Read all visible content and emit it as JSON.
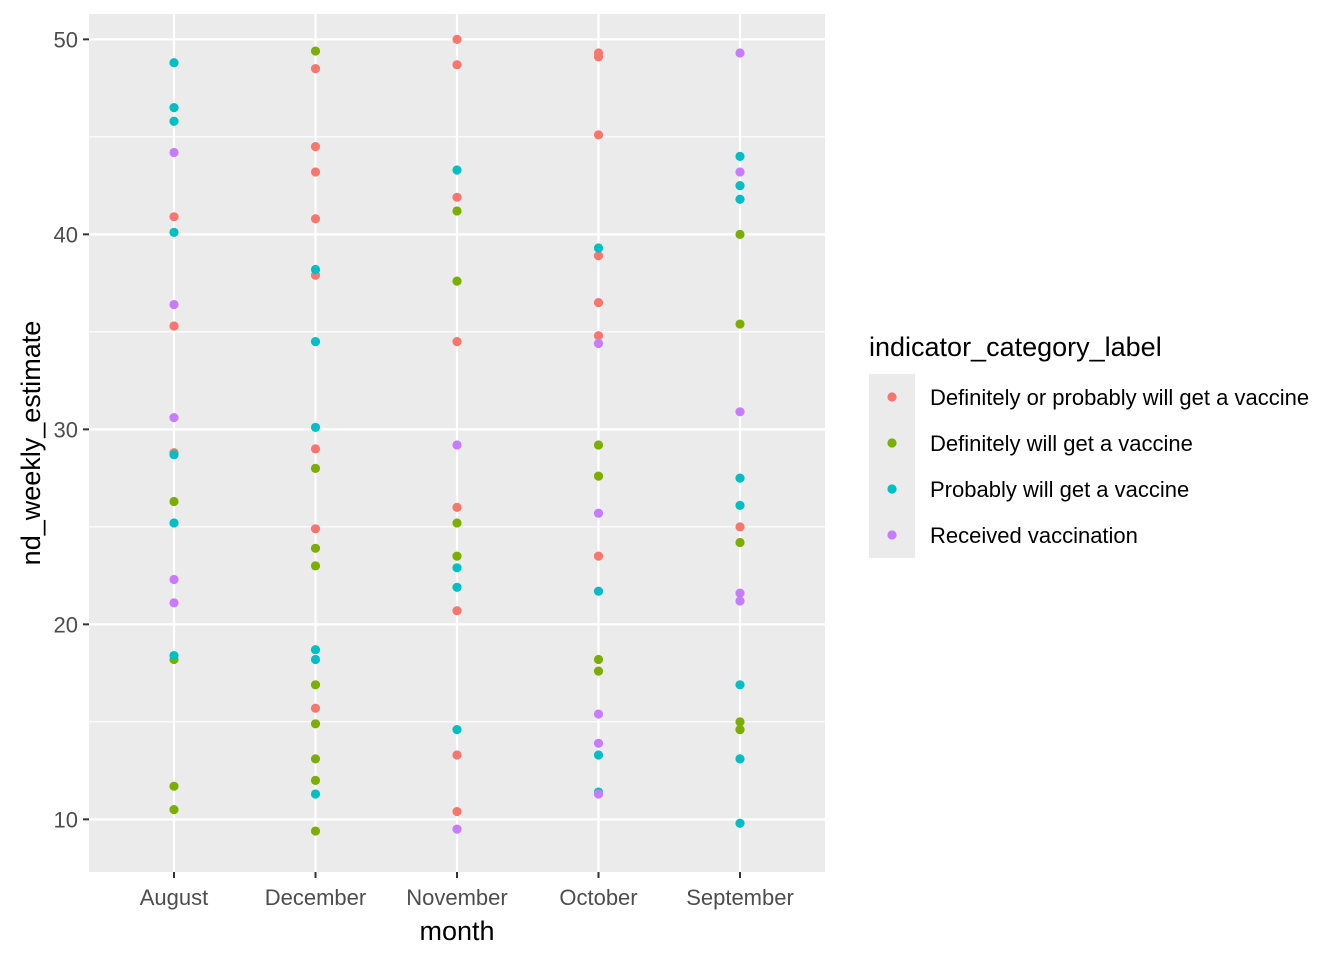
{
  "chart_data": {
    "type": "scatter",
    "xlabel": "month",
    "ylabel": "nd_weekly_estimate",
    "categories": [
      "August",
      "December",
      "November",
      "October",
      "September"
    ],
    "ylim": [
      7.3,
      51.3
    ],
    "yticks": [
      10,
      20,
      30,
      40,
      50
    ],
    "grid": true,
    "legend": {
      "title": "indicator_category_label",
      "position": "right"
    },
    "series": [
      {
        "name": "Definitely or probably will get a vaccine",
        "color": "#F8766D",
        "points": [
          {
            "x": "August",
            "y": 40.9
          },
          {
            "x": "August",
            "y": 35.3
          },
          {
            "x": "August",
            "y": 28.8
          },
          {
            "x": "December",
            "y": 48.5
          },
          {
            "x": "December",
            "y": 44.5
          },
          {
            "x": "December",
            "y": 43.2
          },
          {
            "x": "December",
            "y": 40.8
          },
          {
            "x": "December",
            "y": 37.9
          },
          {
            "x": "December",
            "y": 29.0
          },
          {
            "x": "December",
            "y": 24.9
          },
          {
            "x": "December",
            "y": 15.7
          },
          {
            "x": "November",
            "y": 50.0
          },
          {
            "x": "November",
            "y": 48.7
          },
          {
            "x": "November",
            "y": 41.9
          },
          {
            "x": "November",
            "y": 34.5
          },
          {
            "x": "November",
            "y": 26.0
          },
          {
            "x": "November",
            "y": 20.7
          },
          {
            "x": "November",
            "y": 13.3
          },
          {
            "x": "November",
            "y": 10.4
          },
          {
            "x": "October",
            "y": 49.3
          },
          {
            "x": "October",
            "y": 49.1
          },
          {
            "x": "October",
            "y": 45.1
          },
          {
            "x": "October",
            "y": 38.9
          },
          {
            "x": "October",
            "y": 36.5
          },
          {
            "x": "October",
            "y": 34.8
          },
          {
            "x": "October",
            "y": 23.5
          },
          {
            "x": "September",
            "y": 25.0
          }
        ]
      },
      {
        "name": "Definitely will get a vaccine",
        "color": "#7CAE00",
        "points": [
          {
            "x": "August",
            "y": 26.3
          },
          {
            "x": "August",
            "y": 18.2
          },
          {
            "x": "August",
            "y": 11.7
          },
          {
            "x": "August",
            "y": 10.5
          },
          {
            "x": "December",
            "y": 49.4
          },
          {
            "x": "December",
            "y": 28.0
          },
          {
            "x": "December",
            "y": 23.9
          },
          {
            "x": "December",
            "y": 23.0
          },
          {
            "x": "December",
            "y": 16.9
          },
          {
            "x": "December",
            "y": 14.9
          },
          {
            "x": "December",
            "y": 13.1
          },
          {
            "x": "December",
            "y": 12.0
          },
          {
            "x": "December",
            "y": 9.4
          },
          {
            "x": "November",
            "y": 41.2
          },
          {
            "x": "November",
            "y": 37.6
          },
          {
            "x": "November",
            "y": 25.2
          },
          {
            "x": "November",
            "y": 23.5
          },
          {
            "x": "October",
            "y": 29.2
          },
          {
            "x": "October",
            "y": 27.6
          },
          {
            "x": "October",
            "y": 18.2
          },
          {
            "x": "October",
            "y": 17.6
          },
          {
            "x": "September",
            "y": 40.0
          },
          {
            "x": "September",
            "y": 35.4
          },
          {
            "x": "September",
            "y": 24.2
          },
          {
            "x": "September",
            "y": 15.0
          },
          {
            "x": "September",
            "y": 14.6
          }
        ]
      },
      {
        "name": "Probably will get a vaccine",
        "color": "#00BFC4",
        "points": [
          {
            "x": "August",
            "y": 48.8
          },
          {
            "x": "August",
            "y": 46.5
          },
          {
            "x": "August",
            "y": 45.8
          },
          {
            "x": "August",
            "y": 40.1
          },
          {
            "x": "August",
            "y": 28.7
          },
          {
            "x": "August",
            "y": 25.2
          },
          {
            "x": "August",
            "y": 18.4
          },
          {
            "x": "December",
            "y": 38.2
          },
          {
            "x": "December",
            "y": 34.5
          },
          {
            "x": "December",
            "y": 30.1
          },
          {
            "x": "December",
            "y": 18.7
          },
          {
            "x": "December",
            "y": 18.2
          },
          {
            "x": "December",
            "y": 11.3
          },
          {
            "x": "November",
            "y": 43.3
          },
          {
            "x": "November",
            "y": 22.9
          },
          {
            "x": "November",
            "y": 21.9
          },
          {
            "x": "November",
            "y": 14.6
          },
          {
            "x": "October",
            "y": 39.3
          },
          {
            "x": "October",
            "y": 21.7
          },
          {
            "x": "October",
            "y": 13.3
          },
          {
            "x": "October",
            "y": 11.4
          },
          {
            "x": "September",
            "y": 44.0
          },
          {
            "x": "September",
            "y": 42.5
          },
          {
            "x": "September",
            "y": 41.8
          },
          {
            "x": "September",
            "y": 27.5
          },
          {
            "x": "September",
            "y": 26.1
          },
          {
            "x": "September",
            "y": 16.9
          },
          {
            "x": "September",
            "y": 13.1
          },
          {
            "x": "September",
            "y": 9.8
          }
        ]
      },
      {
        "name": "Received vaccination",
        "color": "#C77CFF",
        "points": [
          {
            "x": "August",
            "y": 44.2
          },
          {
            "x": "August",
            "y": 36.4
          },
          {
            "x": "August",
            "y": 30.6
          },
          {
            "x": "August",
            "y": 22.3
          },
          {
            "x": "August",
            "y": 21.1
          },
          {
            "x": "November",
            "y": 29.2
          },
          {
            "x": "November",
            "y": 9.5
          },
          {
            "x": "October",
            "y": 34.4
          },
          {
            "x": "October",
            "y": 25.7
          },
          {
            "x": "October",
            "y": 15.4
          },
          {
            "x": "October",
            "y": 13.9
          },
          {
            "x": "October",
            "y": 11.3
          },
          {
            "x": "September",
            "y": 49.3
          },
          {
            "x": "September",
            "y": 43.2
          },
          {
            "x": "September",
            "y": 30.9
          },
          {
            "x": "September",
            "y": 21.6
          },
          {
            "x": "September",
            "y": 21.2
          }
        ]
      }
    ]
  }
}
